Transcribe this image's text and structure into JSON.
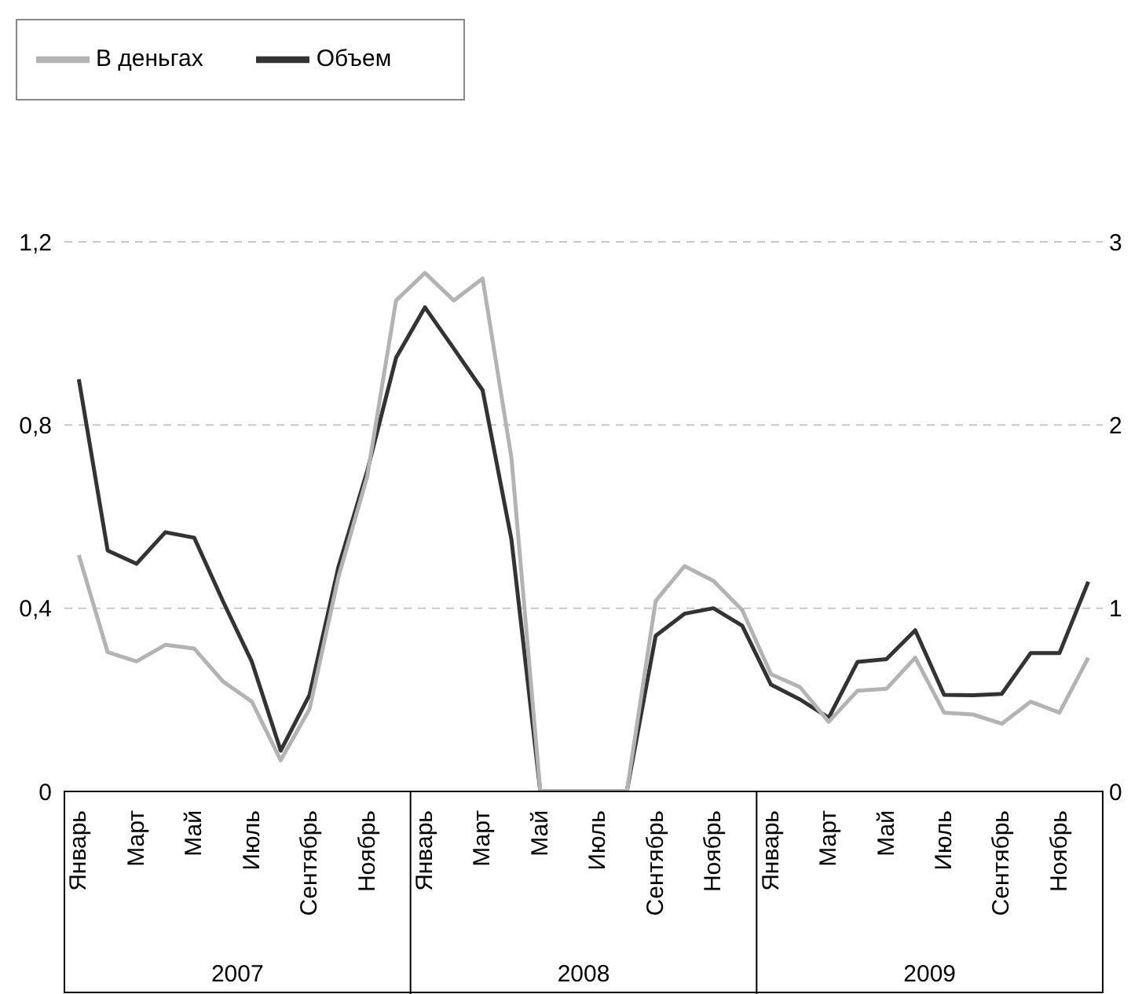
{
  "chart_data": {
    "type": "line",
    "categories": [
      "Январь",
      null,
      "Март",
      null,
      "Май",
      null,
      "Июль",
      null,
      "Сентябрь",
      null,
      "Ноябрь",
      null,
      "Январь",
      null,
      "Март",
      null,
      "Май",
      null,
      "Июль",
      null,
      "Сентябрь",
      null,
      "Ноябрь",
      null,
      "Январь",
      null,
      "Март",
      null,
      "Май",
      null,
      "Июль",
      null,
      "Сентябрь",
      null,
      "Ноябрь",
      null
    ],
    "series": [
      {
        "name": "Объем",
        "color": "#333333",
        "values": [
          0.9,
          0.526,
          0.497,
          0.566,
          0.554,
          0.415,
          0.283,
          0.089,
          0.211,
          0.49,
          0.7,
          0.947,
          1.057,
          0.967,
          0.876,
          0.55,
          0,
          0,
          0,
          0,
          0.34,
          0.388,
          0.4,
          0.362,
          0.233,
          0.201,
          0.161,
          0.283,
          0.289,
          0.352,
          0.211,
          0.21,
          0.213,
          0.302,
          0.302,
          0.458
        ]
      },
      {
        "name": "В деньгах",
        "color": "#b3b3b3",
        "axis": "y2",
        "values": [
          1.29,
          0.76,
          0.71,
          0.8,
          0.78,
          0.6,
          0.49,
          0.17,
          0.45,
          1.17,
          1.72,
          2.68,
          2.83,
          2.68,
          2.8,
          1.82,
          0,
          0,
          0,
          0,
          1.04,
          1.23,
          1.15,
          0.99,
          0.64,
          0.57,
          0.38,
          0.55,
          0.56,
          0.73,
          0.43,
          0.42,
          0.37,
          0.49,
          0.43,
          0.73
        ]
      }
    ],
    "ylim": [
      0,
      1.2
    ],
    "yticks": [
      0,
      {
        "value": 0.4,
        "label": "0,4"
      },
      {
        "value": 0.8,
        "label": "0,8"
      },
      {
        "value": 1.2,
        "label": "1,2"
      }
    ],
    "y2lim": [
      0,
      3
    ],
    "y2ticks": [
      0,
      1,
      2,
      3
    ],
    "annotations": [
      "2007",
      "2008",
      "2009"
    ],
    "grid": "y",
    "legend": "top left",
    "marker": "none",
    "line_style": "solid"
  }
}
